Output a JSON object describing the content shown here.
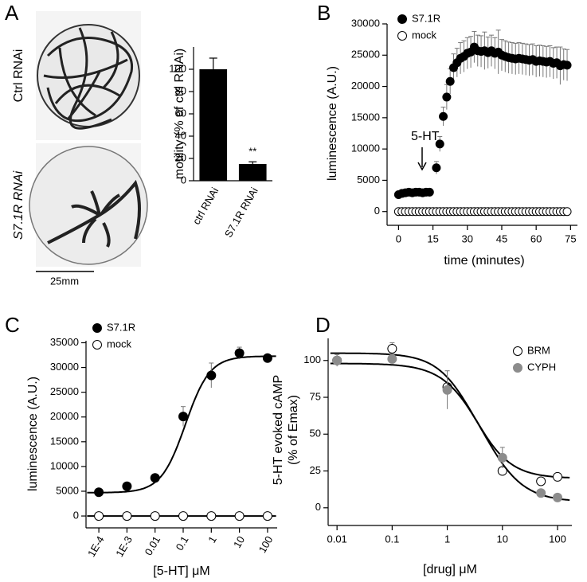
{
  "chart_data": [
    {
      "type": "bar",
      "panel": "A",
      "image_labels": [
        "Ctrl RNAi",
        "S7.1R RNAi"
      ],
      "scale_bar": "25mm",
      "y_label": "motility (% of ctrl RNAi)",
      "categories": [
        "ctrl RNAi",
        "S7.1R RNAi"
      ],
      "values": [
        100,
        15
      ],
      "errors": [
        10,
        2
      ],
      "color": "#000000",
      "annotation": "**",
      "ylim": [
        0,
        120
      ],
      "yticks": [
        0,
        20,
        40,
        60,
        80,
        100
      ]
    },
    {
      "type": "scatter",
      "panel": "B",
      "x_label": "time (minutes)",
      "y_label": "luminescence (A.U.)",
      "annotation": "5-HT",
      "legend": "top-left",
      "xlim": [
        -5,
        78
      ],
      "xticks": [
        0,
        15,
        30,
        45,
        60,
        75
      ],
      "ylim": [
        -2200,
        30000
      ],
      "yticks": [
        0,
        5000,
        10000,
        15000,
        20000,
        25000,
        30000
      ],
      "series": [
        {
          "name": "S7.1R",
          "color": "#000000",
          "x": [
            0,
            1.5,
            3,
            4.5,
            6,
            7.5,
            9,
            10.5,
            12,
            13.5,
            16.5,
            18,
            19.5,
            21,
            22.5,
            24,
            25.5,
            27,
            28.5,
            30,
            31.5,
            33,
            34.5,
            36,
            37.5,
            39,
            40.5,
            42,
            43.5,
            45,
            46.5,
            48,
            49.5,
            51,
            52.5,
            54,
            55.5,
            57,
            58.5,
            60,
            61.5,
            63,
            64.5,
            66,
            67.5,
            69,
            70.5,
            72,
            73.5
          ],
          "values": [
            2700,
            2900,
            3000,
            3100,
            3000,
            3100,
            3100,
            3000,
            3100,
            3100,
            7000,
            10800,
            15200,
            18300,
            20800,
            23000,
            23800,
            24500,
            24800,
            25300,
            25500,
            26300,
            25700,
            25600,
            25700,
            25400,
            25700,
            25300,
            25500,
            25000,
            24800,
            24600,
            24500,
            24400,
            24500,
            24400,
            24300,
            24200,
            24300,
            24000,
            24100,
            24000,
            23900,
            24000,
            23700,
            23800,
            23300,
            23500,
            23400
          ],
          "errors": [
            300,
            300,
            300,
            300,
            300,
            300,
            300,
            300,
            300,
            300,
            1000,
            1200,
            1500,
            2000,
            2000,
            2200,
            2300,
            2500,
            2500,
            2500,
            2500,
            2500,
            2500,
            2500,
            3000,
            2500,
            2500,
            2500,
            3500,
            2500,
            2500,
            2500,
            2500,
            2500,
            2500,
            2500,
            2500,
            2500,
            2500,
            2500,
            2500,
            2500,
            2500,
            2500,
            2500,
            2500,
            3000,
            2500,
            2500
          ]
        },
        {
          "name": "mock",
          "color": "#ffffff",
          "x": [
            0,
            1.5,
            3,
            4.5,
            6,
            7.5,
            9,
            10.5,
            12,
            13.5,
            15,
            16.5,
            18,
            19.5,
            21,
            22.5,
            24,
            25.5,
            27,
            28.5,
            30,
            31.5,
            33,
            34.5,
            36,
            37.5,
            39,
            40.5,
            42,
            43.5,
            45,
            46.5,
            48,
            49.5,
            51,
            52.5,
            54,
            55.5,
            57,
            58.5,
            60,
            61.5,
            63,
            64.5,
            66,
            67.5,
            69,
            70.5,
            72,
            73.5
          ],
          "values": [
            0,
            0,
            0,
            0,
            0,
            0,
            0,
            0,
            0,
            0,
            0,
            0,
            0,
            0,
            0,
            0,
            0,
            0,
            0,
            0,
            0,
            0,
            0,
            0,
            0,
            0,
            0,
            0,
            0,
            0,
            0,
            0,
            0,
            0,
            0,
            0,
            0,
            0,
            0,
            0,
            0,
            0,
            0,
            0,
            0,
            0,
            0,
            0,
            0,
            0
          ]
        }
      ]
    },
    {
      "type": "scatter",
      "panel": "C",
      "x_label": "[5-HT] μM",
      "y_label": "luminescence (A.U.)",
      "legend": "top-left",
      "xscale": "log",
      "xlim": [
        3.5e-05,
        220
      ],
      "xticks": [
        {
          "value": 0.0001,
          "label": "1E-4"
        },
        {
          "value": 0.001,
          "label": "1E-3"
        },
        0.01,
        0.1,
        1,
        10,
        100
      ],
      "ylim": [
        -2400,
        35400
      ],
      "yticks": [
        0,
        5000,
        10000,
        15000,
        20000,
        25000,
        30000,
        35000
      ],
      "series": [
        {
          "name": "S7.1R",
          "color": "#000000",
          "x": [
            0.0001,
            0.001,
            0.01,
            0.1,
            1,
            10,
            100
          ],
          "values": [
            4800,
            6000,
            7700,
            20100,
            28400,
            32900,
            31900
          ],
          "errors": [
            300,
            300,
            400,
            2000,
            2500,
            1200,
            300
          ],
          "fit": {
            "bottom": 4700,
            "top": 32300,
            "ec50": 0.12,
            "hill": 1
          }
        },
        {
          "name": "mock",
          "color": "#ffffff",
          "x": [
            0.0001,
            0.001,
            0.01,
            0.1,
            1,
            10,
            100
          ],
          "values": [
            0,
            0,
            0,
            0,
            0,
            0,
            0
          ],
          "fit": {
            "bottom": 0,
            "top": 0
          }
        }
      ]
    },
    {
      "type": "scatter",
      "panel": "D",
      "x_label": "[drug] μM",
      "y_label": [
        "5-HT evoked cAMP",
        "(% of Emax)"
      ],
      "legend": "top-right",
      "xscale": "log",
      "xlim": [
        0.0069,
        182
      ],
      "xticks": [
        0.01,
        0.1,
        1,
        10,
        100
      ],
      "ylim": [
        -12,
        115
      ],
      "yticks": [
        0,
        25,
        50,
        75,
        100
      ],
      "series": [
        {
          "name": "BRM",
          "color": "#ffffff",
          "x": [
            0.01,
            0.1,
            1,
            10,
            50,
            100
          ],
          "values": [
            100,
            108,
            82,
            25,
            18,
            21
          ],
          "errors": [
            0,
            4,
            0,
            0,
            0,
            0
          ],
          "fit": {
            "bottom": 20,
            "top": 105,
            "ec50": 3,
            "hill": -1.3
          }
        },
        {
          "name": "CYPH",
          "color": "#8c8c8c",
          "x": [
            0.01,
            0.1,
            1,
            10,
            50,
            100
          ],
          "values": [
            100,
            101,
            80,
            34,
            10,
            7
          ],
          "errors": [
            4,
            3,
            13,
            7,
            0,
            0
          ],
          "fit": {
            "bottom": 4,
            "top": 98,
            "ec50": 4.5,
            "hill": -1.2
          }
        }
      ]
    }
  ]
}
